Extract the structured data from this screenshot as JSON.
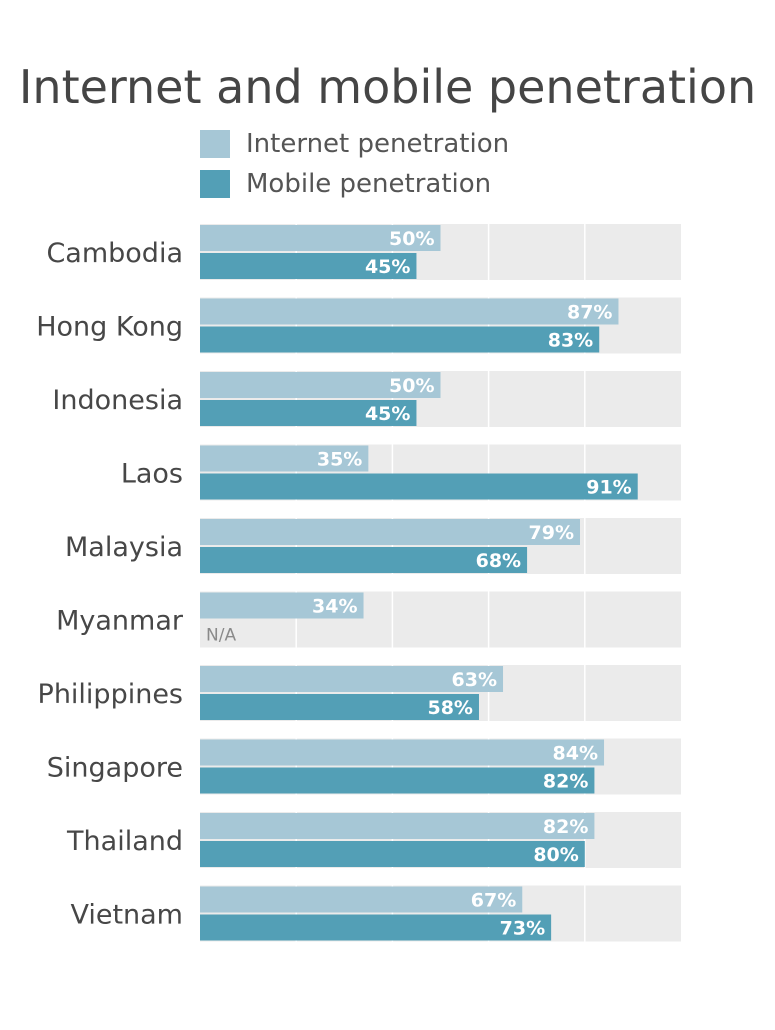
{
  "chart_data": {
    "type": "bar",
    "orientation": "horizontal",
    "title": "Internet and mobile penetration",
    "categories": [
      "Cambodia",
      "Hong Kong",
      "Indonesia",
      "Laos",
      "Malaysia",
      "Myanmar",
      "Philippines",
      "Singapore",
      "Thailand",
      "Vietnam"
    ],
    "series": [
      {
        "name": "Internet penetration",
        "color": "#a6c7d6",
        "values": [
          50,
          87,
          50,
          35,
          79,
          34,
          63,
          84,
          82,
          67
        ],
        "labels": [
          "50%",
          "87%",
          "50%",
          "35%",
          "79%",
          "34%",
          "63%",
          "84%",
          "82%",
          "67%"
        ]
      },
      {
        "name": "Mobile penetration",
        "color": "#539fb6",
        "values": [
          45,
          83,
          45,
          91,
          68,
          null,
          58,
          82,
          80,
          73
        ],
        "labels": [
          "45%",
          "83%",
          "45%",
          "91%",
          "68%",
          "N/A",
          "58%",
          "82%",
          "80%",
          "73%"
        ]
      }
    ],
    "xlim": [
      0,
      100
    ],
    "grid": true,
    "legend_position": "top-left",
    "background_color": "#ebebeb",
    "grid_color": "#ffffff"
  }
}
